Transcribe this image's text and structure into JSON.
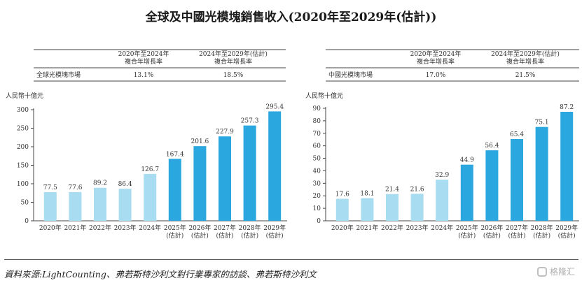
{
  "title": "全球及中國光模塊銷售收入(2020年至2029年(估計))",
  "source": "資料來源:LightCounting、弗若斯特沙利文對行業專家的訪談、弗若斯特沙利文",
  "watermark": "格隆汇",
  "colors": {
    "actual": "#a8dcf1",
    "forecast": "#2aa7df"
  },
  "chart_data": [
    {
      "type": "bar",
      "ylabel": "人民幣十億元",
      "ylim": [
        0,
        300
      ],
      "yticks": [
        0,
        50,
        100,
        150,
        200,
        250,
        300
      ],
      "categories": [
        "2020年",
        "2021年",
        "2022年",
        "2023年",
        "2024年",
        "2025年\n(估計)",
        "2026年\n(估計)",
        "2027年\n(估計)",
        "2028年\n(估計)",
        "2029年\n(估計)"
      ],
      "values": [
        77.5,
        77.6,
        89.2,
        86.4,
        126.7,
        167.4,
        201.6,
        227.9,
        257.3,
        295.4
      ],
      "value_labels": [
        "77.5",
        "77.6",
        "89.2",
        "86.4",
        "126.7",
        "167.4",
        "201.6",
        "227.9",
        "257.3",
        "295.4"
      ],
      "forecast_from_index": 5,
      "cagr_table": {
        "headers": [
          "2020年至2024年\n複合年增長率",
          "2024年至2029年(估計)\n複合年增長率"
        ],
        "row_label": "全球光模塊市場",
        "values": [
          "13.1%",
          "18.5%"
        ]
      }
    },
    {
      "type": "bar",
      "ylabel": "人民幣十億元",
      "ylim": [
        0,
        90
      ],
      "yticks": [
        0,
        10,
        20,
        30,
        40,
        50,
        60,
        70,
        80,
        90
      ],
      "categories": [
        "2020年",
        "2021年",
        "2022年",
        "2023年",
        "2024年",
        "2025年\n(估計)",
        "2026年\n(估計)",
        "2027年\n(估計)",
        "2028年\n(估計)",
        "2029年\n(估計)"
      ],
      "values": [
        17.6,
        18.1,
        21.4,
        21.6,
        32.9,
        44.9,
        56.4,
        65.4,
        75.1,
        87.2
      ],
      "value_labels": [
        "17.6",
        "18.1",
        "21.4",
        "21.6",
        "32.9",
        "44.9",
        "56.4",
        "65.4",
        "75.1",
        "87.2"
      ],
      "forecast_from_index": 5,
      "cagr_table": {
        "headers": [
          "2020年至2024年\n複合年增長率",
          "2024年至2029年(估計)\n複合年增長率"
        ],
        "row_label": "中國光模塊市場",
        "values": [
          "17.0%",
          "21.5%"
        ]
      }
    }
  ]
}
